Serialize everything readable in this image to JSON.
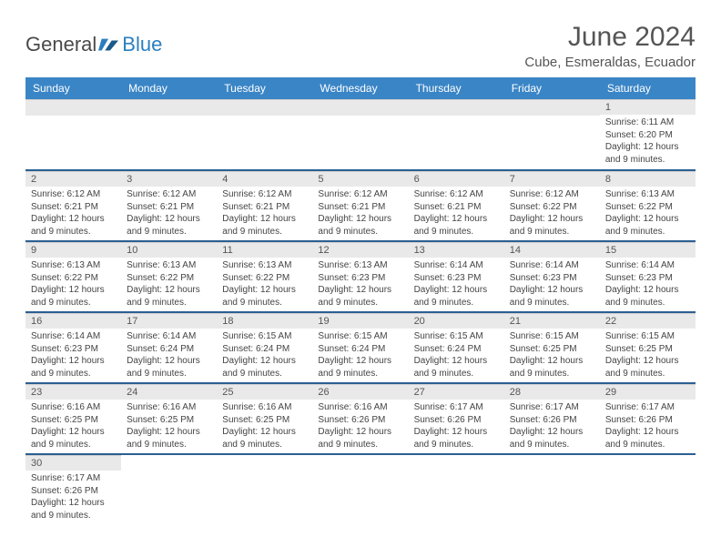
{
  "logo": {
    "part1": "General",
    "part2": "Blue"
  },
  "title": {
    "month": "June 2024",
    "location": "Cube, Esmeraldas, Ecuador"
  },
  "header_bg": "#3a85c6",
  "header_text_color": "#ffffff",
  "band_bg": "#e9e9e9",
  "row_border_color": "#2b5f93",
  "logo_blue": "#2b7fbf",
  "logo_gray": "#4a4a4a",
  "text_color": "#444444",
  "font_family": "Arial, Helvetica, sans-serif",
  "day_num_fontsize": 11,
  "detail_fontsize": 10,
  "header_fontsize": 12,
  "title_fontsize": 30,
  "location_fontsize": 15,
  "daynames": [
    "Sunday",
    "Monday",
    "Tuesday",
    "Wednesday",
    "Thursday",
    "Friday",
    "Saturday"
  ],
  "weeks": [
    [
      null,
      null,
      null,
      null,
      null,
      null,
      {
        "n": "1",
        "sr": "Sunrise: 6:11 AM",
        "ss": "Sunset: 6:20 PM",
        "dl1": "Daylight: 12 hours",
        "dl2": "and 9 minutes."
      }
    ],
    [
      {
        "n": "2",
        "sr": "Sunrise: 6:12 AM",
        "ss": "Sunset: 6:21 PM",
        "dl1": "Daylight: 12 hours",
        "dl2": "and 9 minutes."
      },
      {
        "n": "3",
        "sr": "Sunrise: 6:12 AM",
        "ss": "Sunset: 6:21 PM",
        "dl1": "Daylight: 12 hours",
        "dl2": "and 9 minutes."
      },
      {
        "n": "4",
        "sr": "Sunrise: 6:12 AM",
        "ss": "Sunset: 6:21 PM",
        "dl1": "Daylight: 12 hours",
        "dl2": "and 9 minutes."
      },
      {
        "n": "5",
        "sr": "Sunrise: 6:12 AM",
        "ss": "Sunset: 6:21 PM",
        "dl1": "Daylight: 12 hours",
        "dl2": "and 9 minutes."
      },
      {
        "n": "6",
        "sr": "Sunrise: 6:12 AM",
        "ss": "Sunset: 6:21 PM",
        "dl1": "Daylight: 12 hours",
        "dl2": "and 9 minutes."
      },
      {
        "n": "7",
        "sr": "Sunrise: 6:12 AM",
        "ss": "Sunset: 6:22 PM",
        "dl1": "Daylight: 12 hours",
        "dl2": "and 9 minutes."
      },
      {
        "n": "8",
        "sr": "Sunrise: 6:13 AM",
        "ss": "Sunset: 6:22 PM",
        "dl1": "Daylight: 12 hours",
        "dl2": "and 9 minutes."
      }
    ],
    [
      {
        "n": "9",
        "sr": "Sunrise: 6:13 AM",
        "ss": "Sunset: 6:22 PM",
        "dl1": "Daylight: 12 hours",
        "dl2": "and 9 minutes."
      },
      {
        "n": "10",
        "sr": "Sunrise: 6:13 AM",
        "ss": "Sunset: 6:22 PM",
        "dl1": "Daylight: 12 hours",
        "dl2": "and 9 minutes."
      },
      {
        "n": "11",
        "sr": "Sunrise: 6:13 AM",
        "ss": "Sunset: 6:22 PM",
        "dl1": "Daylight: 12 hours",
        "dl2": "and 9 minutes."
      },
      {
        "n": "12",
        "sr": "Sunrise: 6:13 AM",
        "ss": "Sunset: 6:23 PM",
        "dl1": "Daylight: 12 hours",
        "dl2": "and 9 minutes."
      },
      {
        "n": "13",
        "sr": "Sunrise: 6:14 AM",
        "ss": "Sunset: 6:23 PM",
        "dl1": "Daylight: 12 hours",
        "dl2": "and 9 minutes."
      },
      {
        "n": "14",
        "sr": "Sunrise: 6:14 AM",
        "ss": "Sunset: 6:23 PM",
        "dl1": "Daylight: 12 hours",
        "dl2": "and 9 minutes."
      },
      {
        "n": "15",
        "sr": "Sunrise: 6:14 AM",
        "ss": "Sunset: 6:23 PM",
        "dl1": "Daylight: 12 hours",
        "dl2": "and 9 minutes."
      }
    ],
    [
      {
        "n": "16",
        "sr": "Sunrise: 6:14 AM",
        "ss": "Sunset: 6:23 PM",
        "dl1": "Daylight: 12 hours",
        "dl2": "and 9 minutes."
      },
      {
        "n": "17",
        "sr": "Sunrise: 6:14 AM",
        "ss": "Sunset: 6:24 PM",
        "dl1": "Daylight: 12 hours",
        "dl2": "and 9 minutes."
      },
      {
        "n": "18",
        "sr": "Sunrise: 6:15 AM",
        "ss": "Sunset: 6:24 PM",
        "dl1": "Daylight: 12 hours",
        "dl2": "and 9 minutes."
      },
      {
        "n": "19",
        "sr": "Sunrise: 6:15 AM",
        "ss": "Sunset: 6:24 PM",
        "dl1": "Daylight: 12 hours",
        "dl2": "and 9 minutes."
      },
      {
        "n": "20",
        "sr": "Sunrise: 6:15 AM",
        "ss": "Sunset: 6:24 PM",
        "dl1": "Daylight: 12 hours",
        "dl2": "and 9 minutes."
      },
      {
        "n": "21",
        "sr": "Sunrise: 6:15 AM",
        "ss": "Sunset: 6:25 PM",
        "dl1": "Daylight: 12 hours",
        "dl2": "and 9 minutes."
      },
      {
        "n": "22",
        "sr": "Sunrise: 6:15 AM",
        "ss": "Sunset: 6:25 PM",
        "dl1": "Daylight: 12 hours",
        "dl2": "and 9 minutes."
      }
    ],
    [
      {
        "n": "23",
        "sr": "Sunrise: 6:16 AM",
        "ss": "Sunset: 6:25 PM",
        "dl1": "Daylight: 12 hours",
        "dl2": "and 9 minutes."
      },
      {
        "n": "24",
        "sr": "Sunrise: 6:16 AM",
        "ss": "Sunset: 6:25 PM",
        "dl1": "Daylight: 12 hours",
        "dl2": "and 9 minutes."
      },
      {
        "n": "25",
        "sr": "Sunrise: 6:16 AM",
        "ss": "Sunset: 6:25 PM",
        "dl1": "Daylight: 12 hours",
        "dl2": "and 9 minutes."
      },
      {
        "n": "26",
        "sr": "Sunrise: 6:16 AM",
        "ss": "Sunset: 6:26 PM",
        "dl1": "Daylight: 12 hours",
        "dl2": "and 9 minutes."
      },
      {
        "n": "27",
        "sr": "Sunrise: 6:17 AM",
        "ss": "Sunset: 6:26 PM",
        "dl1": "Daylight: 12 hours",
        "dl2": "and 9 minutes."
      },
      {
        "n": "28",
        "sr": "Sunrise: 6:17 AM",
        "ss": "Sunset: 6:26 PM",
        "dl1": "Daylight: 12 hours",
        "dl2": "and 9 minutes."
      },
      {
        "n": "29",
        "sr": "Sunrise: 6:17 AM",
        "ss": "Sunset: 6:26 PM",
        "dl1": "Daylight: 12 hours",
        "dl2": "and 9 minutes."
      }
    ],
    [
      {
        "n": "30",
        "sr": "Sunrise: 6:17 AM",
        "ss": "Sunset: 6:26 PM",
        "dl1": "Daylight: 12 hours",
        "dl2": "and 9 minutes."
      },
      null,
      null,
      null,
      null,
      null,
      null
    ]
  ]
}
